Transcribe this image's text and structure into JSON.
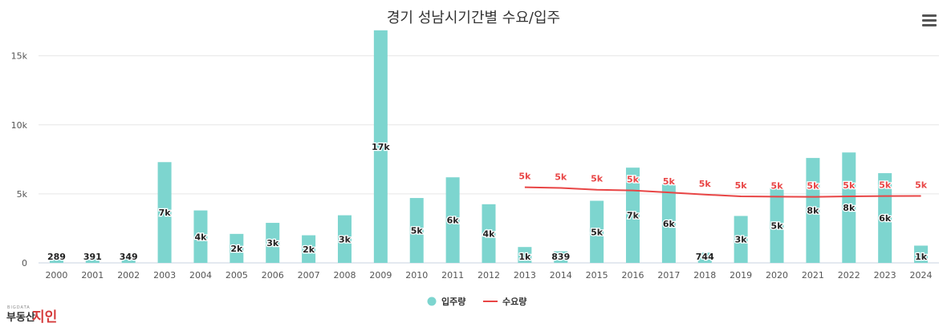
{
  "chart_data": {
    "type": "bar",
    "title": "경기 성남시기간별 수요/입주",
    "categories": [
      "2000",
      "2001",
      "2002",
      "2003",
      "2004",
      "2005",
      "2006",
      "2007",
      "2008",
      "2009",
      "2010",
      "2011",
      "2012",
      "2013",
      "2014",
      "2015",
      "2016",
      "2017",
      "2018",
      "2019",
      "2020",
      "2021",
      "2022",
      "2023",
      "2024"
    ],
    "series": [
      {
        "name": "입주량",
        "type": "bar",
        "color": "#7dd5cf",
        "values": [
          289,
          391,
          349,
          7300,
          3800,
          2100,
          2900,
          2000,
          3450,
          16850,
          4700,
          6200,
          4250,
          1150,
          839,
          4500,
          6900,
          5700,
          744,
          3400,
          5400,
          7600,
          8000,
          6500,
          1250
        ],
        "labels": [
          "289",
          "391",
          "349",
          "7k",
          "4k",
          "2k",
          "3k",
          "2k",
          "3k",
          "17k",
          "5k",
          "6k",
          "4k",
          "1k",
          "839",
          "5k",
          "7k",
          "6k",
          "744",
          "3k",
          "5k",
          "8k",
          "8k",
          "6k",
          "1k"
        ]
      },
      {
        "name": "수요량",
        "type": "line",
        "color": "#e84545",
        "values": [
          null,
          null,
          null,
          null,
          null,
          null,
          null,
          null,
          null,
          null,
          null,
          null,
          null,
          5480,
          5430,
          5300,
          5250,
          5100,
          4950,
          4820,
          4800,
          4780,
          4820,
          4840,
          4850
        ],
        "labels": [
          "",
          "",
          "",
          "",
          "",
          "",
          "",
          "",
          "",
          "",
          "",
          "",
          "",
          "5k",
          "5k",
          "5k",
          "5k",
          "5k",
          "5k",
          "5k",
          "5k",
          "5k",
          "5k",
          "5k",
          "5k"
        ]
      }
    ],
    "ylim": [
      0,
      18000
    ],
    "yticks": [
      0,
      5000,
      10000,
      15000
    ],
    "ytick_labels": [
      "0",
      "5k",
      "10k",
      "15k"
    ],
    "grid": true,
    "legend": "bottom-center"
  },
  "menu_icon": "hamburger-menu-icon",
  "logo": {
    "small_text": "BIGDATA",
    "main_text": "부동산",
    "accent_text": "지인"
  }
}
